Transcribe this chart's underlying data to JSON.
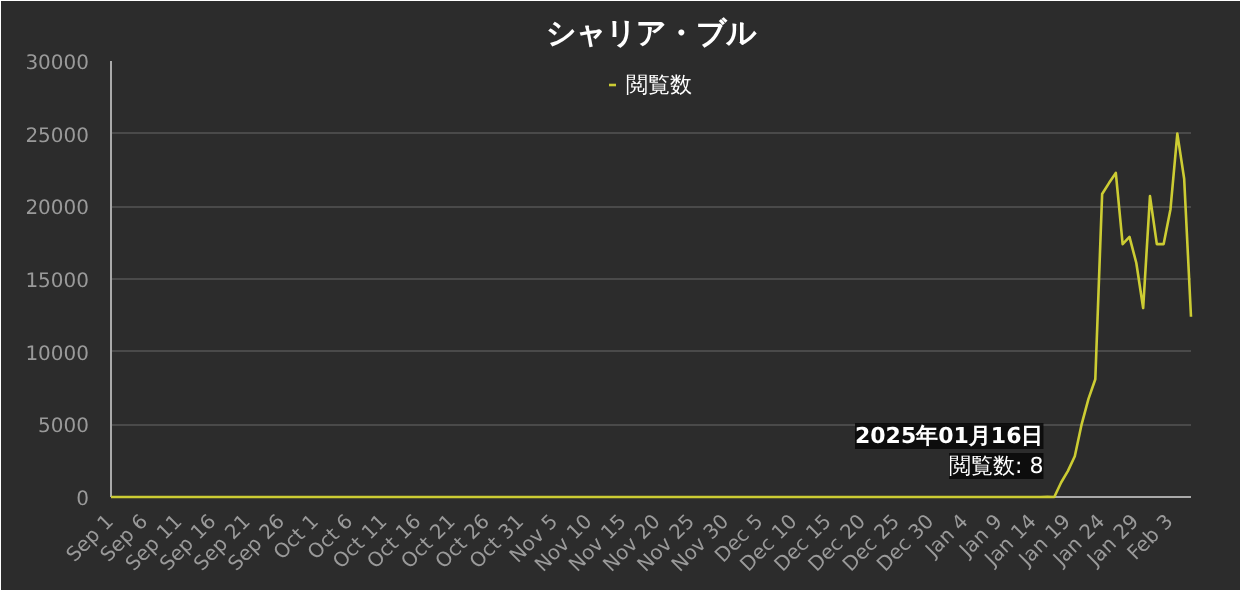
{
  "chart_data": {
    "type": "line",
    "title": "シャリア・ブル",
    "legend": "top",
    "grid": "y",
    "marker": "none",
    "line_style": "solid",
    "x": [
      "2024-09-01",
      "2024-10-01",
      "2024-11-01",
      "2024-12-01",
      "2025-01-01",
      "2025-01-15",
      "2025-01-16",
      "2025-01-17",
      "2025-01-18",
      "2025-01-19",
      "2025-01-20",
      "2025-01-21",
      "2025-01-22",
      "2025-01-23",
      "2025-01-24",
      "2025-01-25",
      "2025-01-26",
      "2025-01-27",
      "2025-01-28",
      "2025-01-29",
      "2025-01-30",
      "2025-01-31",
      "2025-02-01",
      "2025-02-02",
      "2025-02-03",
      "2025-02-04",
      "2025-02-05",
      "2025-02-06"
    ],
    "series": [
      {
        "name": "閲覧数",
        "color": "#cccc33",
        "values": [
          0,
          0,
          0,
          0,
          0,
          0,
          8,
          0,
          1000,
          1800,
          2800,
          5000,
          6750,
          8100,
          20850,
          21600,
          22300,
          17400,
          17900,
          16100,
          13000,
          20700,
          17400,
          17400,
          19800,
          25000,
          21900,
          12400
        ]
      }
    ],
    "xlim": [
      "2024-09-01",
      "2025-02-06"
    ],
    "xticks": [
      {
        "value": "2024-09-01",
        "label": "Sep 1"
      },
      {
        "value": "2024-09-06",
        "label": "Sep 6"
      },
      {
        "value": "2024-09-11",
        "label": "Sep 11"
      },
      {
        "value": "2024-09-16",
        "label": "Sep 16"
      },
      {
        "value": "2024-09-21",
        "label": "Sep 21"
      },
      {
        "value": "2024-09-26",
        "label": "Sep 26"
      },
      {
        "value": "2024-10-01",
        "label": "Oct 1"
      },
      {
        "value": "2024-10-06",
        "label": "Oct 6"
      },
      {
        "value": "2024-10-11",
        "label": "Oct 11"
      },
      {
        "value": "2024-10-16",
        "label": "Oct 16"
      },
      {
        "value": "2024-10-21",
        "label": "Oct 21"
      },
      {
        "value": "2024-10-26",
        "label": "Oct 26"
      },
      {
        "value": "2024-10-31",
        "label": "Oct 31"
      },
      {
        "value": "2024-11-05",
        "label": "Nov 5"
      },
      {
        "value": "2024-11-10",
        "label": "Nov 10"
      },
      {
        "value": "2024-11-15",
        "label": "Nov 15"
      },
      {
        "value": "2024-11-20",
        "label": "Nov 20"
      },
      {
        "value": "2024-11-25",
        "label": "Nov 25"
      },
      {
        "value": "2024-11-30",
        "label": "Nov 30"
      },
      {
        "value": "2024-12-05",
        "label": "Dec 5"
      },
      {
        "value": "2024-12-10",
        "label": "Dec 10"
      },
      {
        "value": "2024-12-15",
        "label": "Dec 15"
      },
      {
        "value": "2024-12-20",
        "label": "Dec 20"
      },
      {
        "value": "2024-12-25",
        "label": "Dec 25"
      },
      {
        "value": "2024-12-30",
        "label": "Dec 30"
      },
      {
        "value": "2025-01-04",
        "label": "Jan 4"
      },
      {
        "value": "2025-01-09",
        "label": "Jan 9"
      },
      {
        "value": "2025-01-14",
        "label": "Jan 14"
      },
      {
        "value": "2025-01-19",
        "label": "Jan 19"
      },
      {
        "value": "2025-01-24",
        "label": "Jan 24"
      },
      {
        "value": "2025-01-29",
        "label": "Jan 29"
      },
      {
        "value": "2025-02-03",
        "label": "Feb 3"
      }
    ],
    "ylim": [
      0,
      30000
    ],
    "yticks": [
      0,
      5000,
      10000,
      15000,
      20000,
      25000,
      30000
    ],
    "annotations": [
      {
        "text": "2025年01月16日",
        "x": "2025-01-16",
        "y": 8
      },
      {
        "text": "閲覧数: 8",
        "x": "2025-01-16",
        "y": 8
      }
    ]
  }
}
